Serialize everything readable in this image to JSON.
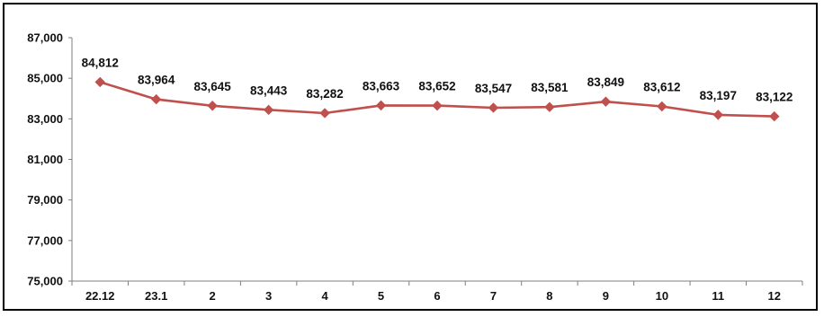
{
  "chart_data": {
    "type": "line",
    "categories": [
      "22.12",
      "23.1",
      "2",
      "3",
      "4",
      "5",
      "6",
      "7",
      "8",
      "9",
      "10",
      "11",
      "12"
    ],
    "series": [
      {
        "values": [
          84812,
          83964,
          83645,
          83443,
          83282,
          83663,
          83652,
          83547,
          83581,
          83849,
          83612,
          83197,
          83122
        ],
        "labels": [
          "84,812",
          "83,964",
          "83,645",
          "83,443",
          "83,282",
          "83,663",
          "83,652",
          "83,547",
          "83,581",
          "83,849",
          "83,612",
          "83,197",
          "83,122"
        ]
      }
    ],
    "y_ticks": [
      "87,000",
      "85,000",
      "83,000",
      "81,000",
      "79,000",
      "77,000",
      "75,000"
    ],
    "ylim": [
      75000,
      87000
    ],
    "grid": false,
    "legend": "none",
    "title": "",
    "xlabel": "",
    "ylabel": "",
    "line_color": "#c0504d",
    "marker": "diamond"
  }
}
